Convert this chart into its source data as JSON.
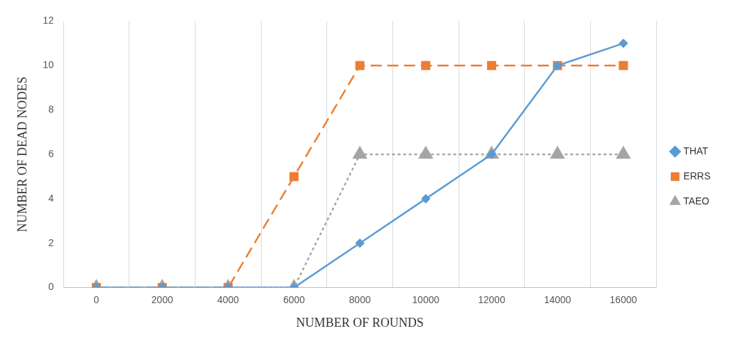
{
  "chart_data": {
    "type": "line",
    "xlabel": "NUMBER OF ROUNDS",
    "ylabel": "NUMBER OF DEAD NODES",
    "categories": [
      "0",
      "2000",
      "4000",
      "6000",
      "8000",
      "10000",
      "12000",
      "14000",
      "16000"
    ],
    "series": [
      {
        "name": "THAT",
        "color": "#5b9bd5",
        "marker": "diamond",
        "line_style": "solid",
        "values": [
          0,
          0,
          0,
          0,
          2,
          4,
          6,
          10,
          11
        ]
      },
      {
        "name": "ERRS",
        "color": "#ed7d31",
        "marker": "square",
        "line_style": "dashed",
        "values": [
          0,
          0,
          0,
          5,
          10,
          10,
          10,
          10,
          10
        ]
      },
      {
        "name": "TAEO",
        "color": "#a5a5a5",
        "marker": "triangle",
        "line_style": "dotted",
        "values": [
          0,
          0,
          0,
          0,
          6,
          6,
          6,
          6,
          6
        ]
      }
    ],
    "ylim": [
      0,
      12
    ],
    "yticks": [
      0,
      2,
      4,
      6,
      8,
      10,
      12
    ],
    "grid": "x",
    "legend": "right"
  }
}
